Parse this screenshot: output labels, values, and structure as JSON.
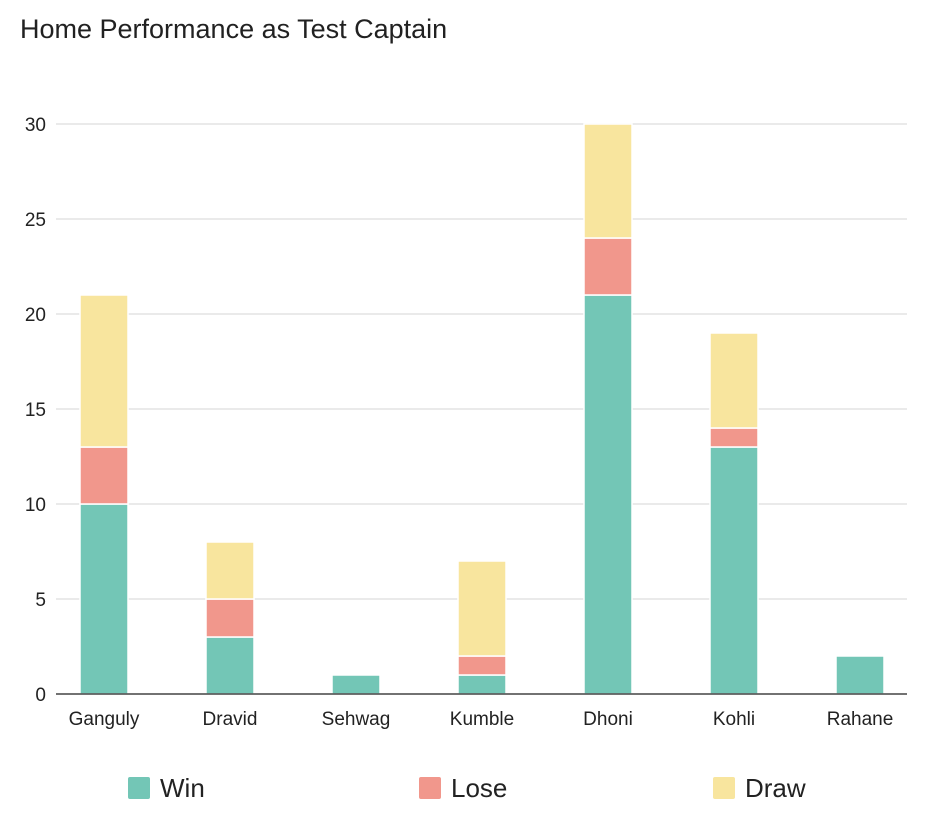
{
  "chart_data": {
    "type": "bar",
    "stacked": true,
    "title": "Home Performance as Test Captain",
    "xlabel": "",
    "ylabel": "",
    "ylim": [
      0,
      30
    ],
    "yticks": [
      0,
      5,
      10,
      15,
      20,
      25,
      30
    ],
    "grid": true,
    "legend_position": "bottom",
    "categories": [
      "Ganguly",
      "Dravid",
      "Sehwag",
      "Kumble",
      "Dhoni",
      "Kohli",
      "Rahane"
    ],
    "series": [
      {
        "name": "Win",
        "color": "#73c6b6",
        "values": [
          10,
          3,
          1,
          1,
          21,
          13,
          2
        ]
      },
      {
        "name": "Lose",
        "color": "#f1978c",
        "values": [
          3,
          2,
          0,
          1,
          3,
          1,
          0
        ]
      },
      {
        "name": "Draw",
        "color": "#f8e59e",
        "values": [
          8,
          3,
          0,
          5,
          6,
          5,
          0
        ]
      }
    ]
  }
}
